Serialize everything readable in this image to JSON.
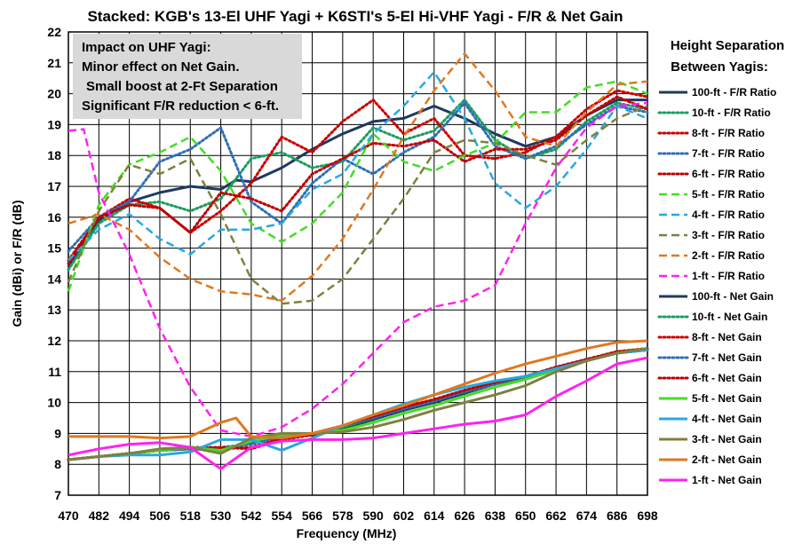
{
  "chart_data": {
    "type": "line",
    "title": "Stacked: KGB's 13-El UHF Yagi + K6STI's 5-El Hi-VHF Yagi - F/R & Net Gain",
    "xlabel": "Frequency (MHz)",
    "ylabel": "Gain (dBi) or F/R (dB)",
    "xlim": [
      470,
      698
    ],
    "ylim": [
      7,
      22
    ],
    "x_ticks": [
      470,
      482,
      494,
      506,
      518,
      530,
      542,
      554,
      566,
      578,
      590,
      602,
      614,
      626,
      638,
      650,
      662,
      674,
      686,
      698
    ],
    "y_ticks": [
      7,
      8,
      9,
      10,
      11,
      12,
      13,
      14,
      15,
      16,
      17,
      18,
      19,
      20,
      21,
      22
    ],
    "grid": true,
    "legend_title": [
      "Height Separation",
      "Between Yagis:"
    ],
    "annotation": [
      "Impact on UHF Yagi:",
      "Minor effect on Net Gain.",
      "Small boost at 2-Ft Separation",
      "Significant  F/R reduction < 6-ft."
    ],
    "series": [
      {
        "name": "100-ft - F/R Ratio",
        "color": "#1f3a5f",
        "style": "solid",
        "width": 3,
        "x": [
          470,
          482,
          494,
          506,
          518,
          530,
          536,
          542,
          554,
          566,
          578,
          590,
          602,
          614,
          626,
          638,
          650,
          662,
          674,
          686,
          698
        ],
        "y": [
          14.4,
          15.9,
          16.5,
          16.8,
          17.0,
          16.9,
          17.2,
          17.15,
          17.6,
          18.2,
          18.7,
          19.1,
          19.2,
          19.6,
          19.2,
          18.7,
          18.3,
          18.6,
          19.3,
          19.8,
          19.8
        ]
      },
      {
        "name": "10-ft - F/R Ratio",
        "color": "#1a9e5c",
        "style": "dotted",
        "width": 3,
        "x": [
          470,
          482,
          494,
          506,
          518,
          530,
          542,
          554,
          566,
          578,
          590,
          602,
          614,
          626,
          638,
          650,
          662,
          674,
          686,
          698
        ],
        "y": [
          14.3,
          15.8,
          16.4,
          16.5,
          16.2,
          16.6,
          17.9,
          18.1,
          17.6,
          17.8,
          18.9,
          18.5,
          18.8,
          19.8,
          18.5,
          17.9,
          18.2,
          19.1,
          19.7,
          19.5
        ]
      },
      {
        "name": "8-ft - F/R Ratio",
        "color": "#cc0000",
        "style": "dotted",
        "width": 3,
        "x": [
          470,
          482,
          494,
          506,
          518,
          530,
          542,
          554,
          566,
          578,
          590,
          602,
          614,
          626,
          638,
          650,
          662,
          674,
          686,
          698
        ],
        "y": [
          14.6,
          16.0,
          16.6,
          16.3,
          15.5,
          16.2,
          17.1,
          18.6,
          18.1,
          19.1,
          19.8,
          18.7,
          19.2,
          18.0,
          17.9,
          18.1,
          18.6,
          19.5,
          20.1,
          19.9
        ]
      },
      {
        "name": "7-ft - F/R Ratio",
        "color": "#2e6fb7",
        "style": "dotted",
        "width": 3,
        "x": [
          470,
          482,
          494,
          506,
          518,
          530,
          542,
          554,
          566,
          578,
          590,
          602,
          614,
          626,
          638,
          650,
          662,
          674,
          686,
          698
        ],
        "y": [
          14.9,
          16.0,
          16.5,
          17.8,
          18.2,
          18.9,
          16.5,
          15.8,
          17.1,
          17.9,
          17.4,
          18.1,
          18.6,
          19.7,
          18.3,
          17.9,
          18.3,
          19.0,
          19.6,
          19.4
        ]
      },
      {
        "name": "6-ft - F/R Ratio",
        "color": "#c00000",
        "style": "dotted",
        "width": 3,
        "x": [
          470,
          482,
          494,
          506,
          518,
          530,
          542,
          554,
          566,
          578,
          590,
          602,
          614,
          626,
          638,
          650,
          662,
          674,
          686,
          698
        ],
        "y": [
          14.5,
          16.0,
          16.4,
          16.3,
          15.5,
          16.8,
          16.6,
          16.2,
          17.4,
          17.9,
          18.4,
          18.3,
          18.5,
          17.8,
          18.2,
          18.2,
          18.5,
          19.3,
          19.9,
          19.5
        ]
      },
      {
        "name": "5-ft - F/R Ratio",
        "color": "#44dd22",
        "style": "dashed",
        "width": 2.5,
        "x": [
          470,
          482,
          494,
          506,
          518,
          530,
          542,
          554,
          566,
          578,
          590,
          602,
          614,
          626,
          638,
          650,
          662,
          674,
          686,
          698
        ],
        "y": [
          13.6,
          16.4,
          17.7,
          18.1,
          18.6,
          17.5,
          15.8,
          15.2,
          15.8,
          16.8,
          18.7,
          17.8,
          17.5,
          18.0,
          18.4,
          19.4,
          19.4,
          20.2,
          20.4,
          20.0
        ]
      },
      {
        "name": "4-ft - F/R Ratio",
        "color": "#27a9e1",
        "style": "dashed",
        "width": 2.5,
        "x": [
          470,
          482,
          494,
          506,
          518,
          530,
          542,
          554,
          566,
          578,
          590,
          602,
          614,
          626,
          638,
          650,
          662,
          674,
          686,
          698
        ],
        "y": [
          14.6,
          15.6,
          16.1,
          15.3,
          14.8,
          15.6,
          15.6,
          15.8,
          16.9,
          17.4,
          18.7,
          19.6,
          20.7,
          19.2,
          17.1,
          16.3,
          17.0,
          18.2,
          19.6,
          19.2
        ]
      },
      {
        "name": "3-ft - F/R Ratio",
        "color": "#808040",
        "style": "dashed",
        "width": 2.5,
        "x": [
          470,
          482,
          494,
          506,
          518,
          530,
          542,
          554,
          566,
          578,
          590,
          602,
          614,
          626,
          638,
          650,
          662,
          674,
          686,
          698
        ],
        "y": [
          13.9,
          16.2,
          17.7,
          17.4,
          17.9,
          16.1,
          14.0,
          13.2,
          13.3,
          14.0,
          15.3,
          16.6,
          18.1,
          18.5,
          18.4,
          18.0,
          17.7,
          18.5,
          19.2,
          19.6
        ]
      },
      {
        "name": "2-ft - F/R Ratio",
        "color": "#e07820",
        "style": "dashed",
        "width": 2.5,
        "x": [
          470,
          482,
          494,
          506,
          518,
          530,
          542,
          554,
          566,
          578,
          590,
          602,
          614,
          626,
          638,
          650,
          662,
          674,
          686,
          698
        ],
        "y": [
          15.8,
          16.1,
          15.6,
          14.7,
          14.0,
          13.6,
          13.5,
          13.3,
          14.1,
          15.3,
          16.9,
          18.6,
          20.1,
          21.3,
          20.1,
          18.6,
          18.3,
          19.4,
          20.3,
          20.4
        ]
      },
      {
        "name": "1-ft - F/R Ratio",
        "color": "#ff22ee",
        "style": "dashed",
        "width": 2.5,
        "x": [
          470,
          476,
          482,
          494,
          506,
          518,
          530,
          542,
          554,
          566,
          578,
          590,
          602,
          614,
          626,
          638,
          650,
          662,
          674,
          686,
          698
        ],
        "y": [
          18.8,
          18.85,
          16.8,
          14.8,
          12.4,
          10.5,
          9.1,
          8.9,
          9.2,
          9.8,
          10.6,
          11.6,
          12.6,
          13.1,
          13.3,
          13.8,
          15.8,
          17.6,
          18.9,
          19.6,
          19.7
        ]
      },
      {
        "name": "100-ft - Net Gain",
        "color": "#1f3a5f",
        "style": "solid",
        "width": 3,
        "x": [
          470,
          482,
          494,
          506,
          518,
          530,
          542,
          554,
          566,
          578,
          590,
          602,
          614,
          626,
          638,
          650,
          662,
          674,
          686,
          698
        ],
        "y": [
          8.15,
          8.25,
          8.35,
          8.45,
          8.5,
          8.45,
          8.7,
          8.9,
          8.95,
          9.15,
          9.45,
          9.75,
          10.0,
          10.3,
          10.6,
          10.8,
          11.1,
          11.35,
          11.6,
          11.7
        ]
      },
      {
        "name": "10-ft - Net Gain",
        "color": "#1a9e5c",
        "style": "dotted",
        "width": 3,
        "x": [
          470,
          482,
          494,
          506,
          518,
          530,
          542,
          554,
          566,
          578,
          590,
          602,
          614,
          626,
          638,
          650,
          662,
          674,
          686,
          698
        ],
        "y": [
          8.15,
          8.25,
          8.35,
          8.45,
          8.5,
          8.55,
          8.65,
          8.9,
          9.0,
          9.2,
          9.5,
          9.8,
          10.05,
          10.35,
          10.6,
          10.8,
          11.1,
          11.35,
          11.6,
          11.7
        ]
      },
      {
        "name": "8-ft - Net Gain",
        "color": "#cc0000",
        "style": "dotted",
        "width": 3,
        "x": [
          470,
          482,
          494,
          506,
          518,
          530,
          542,
          554,
          566,
          578,
          590,
          602,
          614,
          626,
          638,
          650,
          662,
          674,
          686,
          698
        ],
        "y": [
          8.15,
          8.25,
          8.35,
          8.45,
          8.5,
          8.5,
          8.55,
          8.85,
          9.0,
          9.25,
          9.55,
          9.85,
          10.1,
          10.4,
          10.65,
          10.85,
          11.15,
          11.4,
          11.65,
          11.75
        ]
      },
      {
        "name": "7-ft - Net Gain",
        "color": "#2e6fb7",
        "style": "dotted",
        "width": 3,
        "x": [
          470,
          482,
          494,
          506,
          518,
          530,
          542,
          554,
          566,
          578,
          590,
          602,
          614,
          626,
          638,
          650,
          662,
          674,
          686,
          698
        ],
        "y": [
          8.15,
          8.25,
          8.35,
          8.45,
          8.5,
          8.55,
          8.65,
          8.9,
          9.0,
          9.25,
          9.5,
          9.8,
          10.05,
          10.35,
          10.6,
          10.85,
          11.1,
          11.4,
          11.6,
          11.7
        ]
      },
      {
        "name": "6-ft - Net Gain",
        "color": "#c00000",
        "style": "dotted",
        "width": 3,
        "x": [
          470,
          482,
          494,
          506,
          518,
          530,
          542,
          554,
          566,
          578,
          590,
          602,
          614,
          626,
          638,
          650,
          662,
          674,
          686,
          698
        ],
        "y": [
          8.15,
          8.25,
          8.35,
          8.45,
          8.55,
          8.55,
          8.5,
          8.8,
          8.95,
          9.25,
          9.55,
          9.85,
          10.1,
          10.4,
          10.65,
          10.85,
          11.15,
          11.4,
          11.65,
          11.75
        ]
      },
      {
        "name": "5-ft - Net Gain",
        "color": "#44dd22",
        "style": "solid",
        "width": 3,
        "x": [
          470,
          482,
          494,
          506,
          518,
          530,
          542,
          554,
          566,
          578,
          590,
          602,
          614,
          626,
          638,
          650,
          662,
          674,
          686,
          698
        ],
        "y": [
          8.15,
          8.25,
          8.35,
          8.45,
          8.55,
          8.45,
          8.75,
          8.95,
          9.0,
          9.1,
          9.35,
          9.65,
          9.9,
          10.2,
          10.5,
          10.75,
          11.05,
          11.35,
          11.6,
          11.75
        ]
      },
      {
        "name": "4-ft - Net Gain",
        "color": "#27a9e1",
        "style": "solid",
        "width": 3,
        "x": [
          470,
          482,
          494,
          506,
          518,
          530,
          542,
          554,
          566,
          578,
          590,
          602,
          614,
          626,
          638,
          650,
          662,
          674,
          686,
          698
        ],
        "y": [
          8.15,
          8.25,
          8.3,
          8.3,
          8.4,
          8.8,
          8.8,
          8.45,
          8.85,
          9.25,
          9.6,
          9.95,
          10.25,
          10.5,
          10.7,
          10.85,
          11.1,
          11.35,
          11.6,
          11.7
        ]
      },
      {
        "name": "3-ft - Net Gain",
        "color": "#808040",
        "style": "solid",
        "width": 3,
        "x": [
          470,
          482,
          494,
          506,
          518,
          530,
          542,
          554,
          566,
          578,
          590,
          602,
          614,
          626,
          638,
          650,
          662,
          674,
          686,
          698
        ],
        "y": [
          8.15,
          8.25,
          8.35,
          8.5,
          8.55,
          8.35,
          8.85,
          9.0,
          9.0,
          9.05,
          9.2,
          9.45,
          9.75,
          10.0,
          10.25,
          10.55,
          11.0,
          11.35,
          11.6,
          11.75
        ]
      },
      {
        "name": "2-ft - Net Gain",
        "color": "#e07820",
        "style": "solid",
        "width": 3,
        "x": [
          470,
          482,
          494,
          506,
          518,
          530,
          536,
          542,
          554,
          566,
          578,
          590,
          602,
          614,
          626,
          638,
          650,
          662,
          674,
          686,
          698
        ],
        "y": [
          8.9,
          8.9,
          8.9,
          8.85,
          8.9,
          9.35,
          9.5,
          8.9,
          8.85,
          9.0,
          9.25,
          9.6,
          9.9,
          10.25,
          10.6,
          10.95,
          11.25,
          11.5,
          11.75,
          11.95,
          12.0
        ]
      },
      {
        "name": "1-ft - Net Gain",
        "color": "#ff22ee",
        "style": "solid",
        "width": 3,
        "x": [
          470,
          482,
          494,
          506,
          518,
          530,
          542,
          554,
          566,
          578,
          590,
          602,
          614,
          626,
          638,
          650,
          662,
          674,
          686,
          698
        ],
        "y": [
          8.3,
          8.5,
          8.65,
          8.7,
          8.55,
          7.85,
          8.55,
          8.75,
          8.8,
          8.8,
          8.85,
          9.0,
          9.15,
          9.3,
          9.4,
          9.6,
          10.2,
          10.7,
          11.25,
          11.45
        ]
      }
    ]
  }
}
